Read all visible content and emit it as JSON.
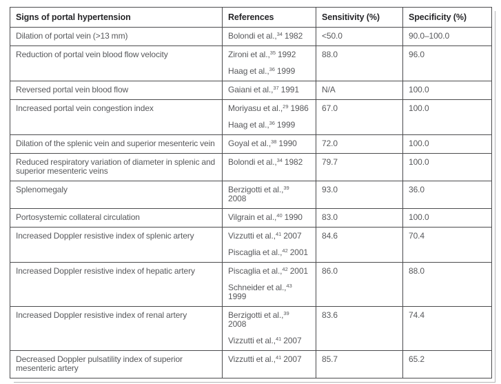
{
  "colors": {
    "border": "#4a4a4c",
    "header_text": "#262629",
    "body_text": "#57585b",
    "background": "#ffffff",
    "shadow_line": "#b4b4b6"
  },
  "table": {
    "headers": [
      {
        "label": "Signs of portal hypertension"
      },
      {
        "label": "References"
      },
      {
        "label": "Sensitivity (%)"
      },
      {
        "label": "Specificity (%)"
      }
    ],
    "rows": [
      {
        "sign": "Dilation of portal vein (>13 mm)",
        "references": [
          [
            {
              "text": "Bolondi et al.,"
            },
            {
              "sup": "34"
            },
            {
              "text": " 1982"
            }
          ]
        ],
        "sensitivity": "<50.0",
        "specificity": "90.0–100.0"
      },
      {
        "sign": "Reduction of portal vein blood flow velocity",
        "references": [
          [
            {
              "text": "Zironi et al.,"
            },
            {
              "sup": "35"
            },
            {
              "text": " 1992"
            }
          ],
          [
            {
              "text": "Haag et al.,"
            },
            {
              "sup": "36"
            },
            {
              "text": " 1999"
            }
          ]
        ],
        "sensitivity": "88.0",
        "specificity": "96.0"
      },
      {
        "sign": "Reversed portal vein blood flow",
        "references": [
          [
            {
              "text": "Gaiani et al.,"
            },
            {
              "sup": "37"
            },
            {
              "text": " 1991"
            }
          ]
        ],
        "sensitivity": "N/A",
        "specificity": "100.0"
      },
      {
        "sign": "Increased portal vein congestion index",
        "references": [
          [
            {
              "text": "Moriyasu et al.,"
            },
            {
              "sup": "29"
            },
            {
              "text": " 1986"
            }
          ],
          [
            {
              "text": "Haag et al.,"
            },
            {
              "sup": "36"
            },
            {
              "text": " 1999"
            }
          ]
        ],
        "sensitivity": "67.0",
        "specificity": "100.0"
      },
      {
        "sign": "Dilation of the splenic vein and superior mesenteric vein",
        "references": [
          [
            {
              "text": "Goyal et al.,"
            },
            {
              "sup": "38"
            },
            {
              "text": " 1990"
            }
          ]
        ],
        "sensitivity": "72.0",
        "specificity": "100.0"
      },
      {
        "sign": "Reduced respiratory variation of diameter in splenic and superior mesenteric veins",
        "references": [
          [
            {
              "text": "Bolondi et al.,"
            },
            {
              "sup": "34"
            },
            {
              "text": " 1982"
            }
          ]
        ],
        "sensitivity": "79.7",
        "specificity": "100.0"
      },
      {
        "sign": "Splenomegaly",
        "references": [
          [
            {
              "text": "Berzigotti et al.,"
            },
            {
              "sup": "39"
            },
            {
              "br": true
            },
            {
              "text": "2008"
            }
          ]
        ],
        "sensitivity": "93.0",
        "specificity": "36.0"
      },
      {
        "sign": "Portosystemic collateral circulation",
        "references": [
          [
            {
              "text": "Vilgrain et al.,"
            },
            {
              "sup": "40"
            },
            {
              "text": " 1990"
            }
          ]
        ],
        "sensitivity": "83.0",
        "specificity": "100.0"
      },
      {
        "sign": "Increased Doppler resistive index of splenic artery",
        "references": [
          [
            {
              "text": "Vizzutti et al.,"
            },
            {
              "sup": "41"
            },
            {
              "text": " 2007"
            }
          ],
          [
            {
              "text": "Piscaglia et al.,"
            },
            {
              "sup": "42"
            },
            {
              "text": " 2001"
            }
          ]
        ],
        "sensitivity": "84.6",
        "specificity": "70.4"
      },
      {
        "sign": "Increased Doppler resistive index of hepatic artery",
        "references": [
          [
            {
              "text": "Piscaglia et al.,"
            },
            {
              "sup": "42"
            },
            {
              "text": " 2001"
            }
          ],
          [
            {
              "text": "Schneider et al.,"
            },
            {
              "sup": "43"
            },
            {
              "br": true
            },
            {
              "text": "1999"
            }
          ]
        ],
        "sensitivity": "86.0",
        "specificity": "88.0"
      },
      {
        "sign": "Increased Doppler resistive index of renal artery",
        "references": [
          [
            {
              "text": "Berzigotti et al.,"
            },
            {
              "sup": "39"
            },
            {
              "br": true
            },
            {
              "text": "2008"
            }
          ],
          [
            {
              "text": "Vizzutti et al.,"
            },
            {
              "sup": "41"
            },
            {
              "text": " 2007"
            }
          ]
        ],
        "sensitivity": "83.6",
        "specificity": "74.4"
      },
      {
        "sign": "Decreased Doppler pulsatility index of superior mesenteric artery",
        "references": [
          [
            {
              "text": "Vizzutti et al.,"
            },
            {
              "sup": "41"
            },
            {
              "text": " 2007"
            }
          ]
        ],
        "sensitivity": "85.7",
        "specificity": "65.2"
      }
    ]
  }
}
